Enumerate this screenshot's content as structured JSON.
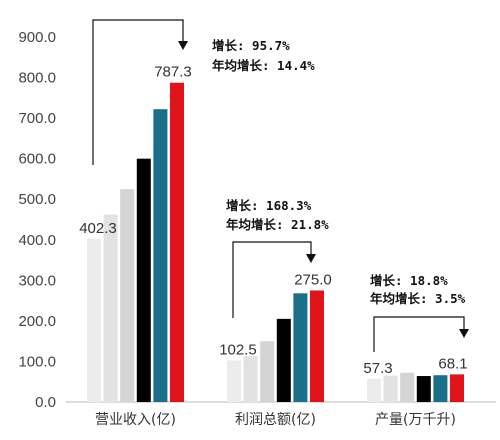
{
  "chart_data": {
    "type": "bar",
    "categories": [
      "营业收入(亿)",
      "利润总额(亿)",
      "产量(万千升)"
    ],
    "series": [
      {
        "values": [
          402.3,
          102.5,
          57.3
        ],
        "color": "#ececec"
      },
      {
        "values": [
          462,
          113,
          65
        ],
        "color": "#e2e2e2"
      },
      {
        "values": [
          525,
          150,
          72
        ],
        "color": "#d4d4d4"
      },
      {
        "values": [
          600,
          205,
          64
        ],
        "color": "#000000"
      },
      {
        "values": [
          722,
          268,
          66
        ],
        "color": "#1a7088"
      },
      {
        "values": [
          787.3,
          275.0,
          68.1
        ],
        "color": "#e0131b"
      }
    ],
    "yticks": [
      "0.0",
      "100.0",
      "200.0",
      "300.0",
      "400.0",
      "500.0",
      "600.0",
      "700.0",
      "800.0",
      "900.0"
    ],
    "ylim": [
      0,
      900
    ],
    "data_labels": [
      {
        "category": 0,
        "first": "402.3",
        "last": "787.3"
      },
      {
        "category": 1,
        "first": "102.5",
        "last": "275.0"
      },
      {
        "category": 2,
        "first": "57.3",
        "last": "68.1"
      }
    ],
    "annotations": [
      {
        "category": 0,
        "line1": "增长: 95.7%",
        "line2": "年均增长: 14.4%"
      },
      {
        "category": 1,
        "line1": "增长: 168.3%",
        "line2": "年均增长: 21.8%"
      },
      {
        "category": 2,
        "line1": "增长: 18.8%",
        "line2": "年均增长: 3.5%"
      }
    ],
    "grid": false,
    "legend": "none"
  }
}
